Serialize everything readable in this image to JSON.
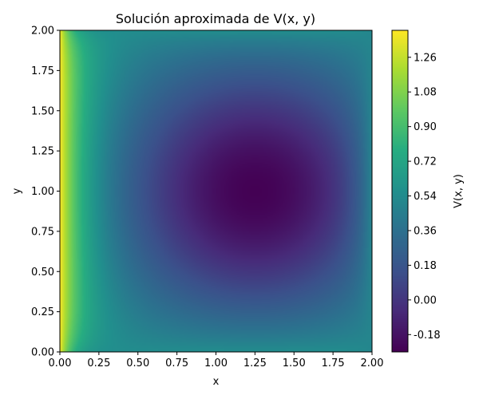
{
  "chart_data": {
    "type": "heatmap",
    "title": "Solución aproximada de V(x, y)",
    "xlabel": "x",
    "ylabel": "y",
    "xlim": [
      0.0,
      2.0
    ],
    "ylim": [
      0.0,
      2.0
    ],
    "x_ticks": [
      "0.00",
      "0.25",
      "0.50",
      "0.75",
      "1.00",
      "1.25",
      "1.50",
      "1.75",
      "2.00"
    ],
    "y_ticks": [
      "0.00",
      "0.25",
      "0.50",
      "0.75",
      "1.00",
      "1.25",
      "1.50",
      "1.75",
      "2.00"
    ],
    "colormap": "viridis",
    "grid": false,
    "colorbar": {
      "label": "V(x, y)",
      "vmin": -0.27,
      "vmax": 1.4,
      "ticks": [
        "-0.18",
        "0.00",
        "0.18",
        "0.36",
        "0.54",
        "0.72",
        "0.90",
        "1.08",
        "1.26"
      ]
    },
    "field": {
      "minimum_location": [
        1.25,
        1.0
      ],
      "minimum_value": -0.27,
      "max_value_left_edge": 1.4,
      "value_right_edge": 0.5,
      "value_top_bottom_edges": 0.55
    }
  }
}
